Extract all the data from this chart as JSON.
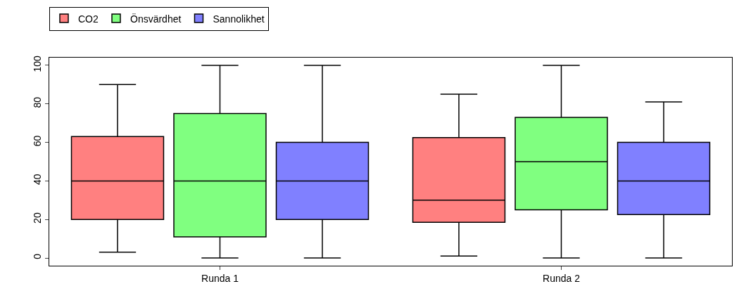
{
  "chart_data": {
    "type": "box",
    "categories": [
      "Runda 1",
      "Runda 2"
    ],
    "series": [
      {
        "name": "CO2",
        "color": "#ff8080",
        "boxes": [
          {
            "low": 3,
            "q1": 20,
            "median": 40,
            "q3": 63,
            "high": 90
          },
          {
            "low": 1,
            "q1": 18.5,
            "median": 30,
            "q3": 62.5,
            "high": 85
          }
        ]
      },
      {
        "name": "Önsvärdhet",
        "color": "#80ff80",
        "boxes": [
          {
            "low": 0,
            "q1": 11,
            "median": 40,
            "q3": 75,
            "high": 100
          },
          {
            "low": 0,
            "q1": 25,
            "median": 50,
            "q3": 73,
            "high": 100
          }
        ]
      },
      {
        "name": "Sannolikhet",
        "color": "#8080ff",
        "boxes": [
          {
            "low": 0,
            "q1": 20,
            "median": 40,
            "q3": 60,
            "high": 100
          },
          {
            "low": 0,
            "q1": 22.5,
            "median": 40,
            "q3": 60,
            "high": 81
          }
        ]
      }
    ],
    "ylim": [
      -4,
      104
    ],
    "yticks": [
      0,
      20,
      40,
      60,
      80,
      100
    ],
    "grid": false,
    "legend": "top left"
  }
}
